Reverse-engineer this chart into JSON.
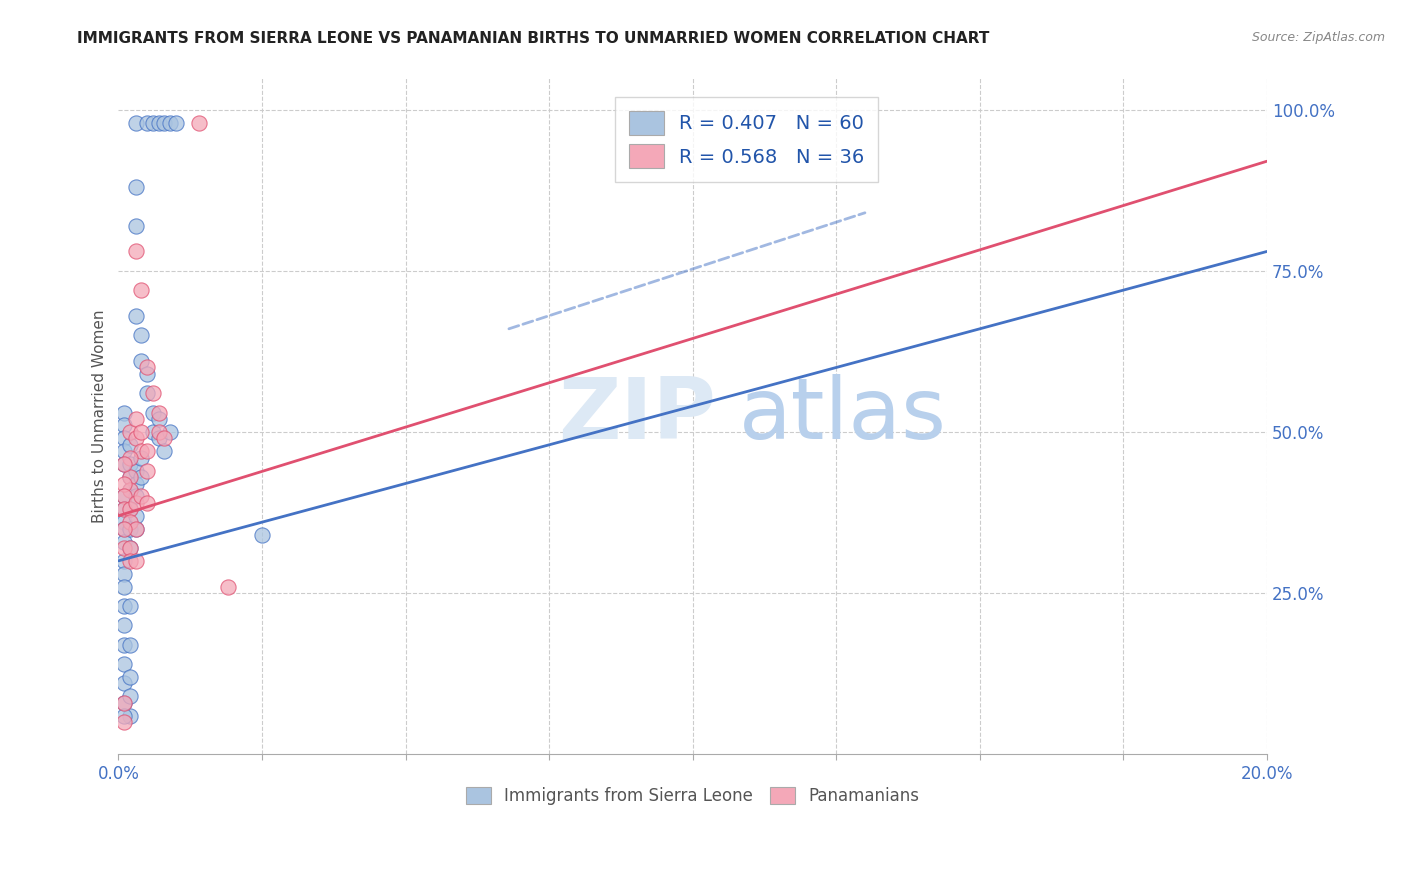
{
  "title": "IMMIGRANTS FROM SIERRA LEONE VS PANAMANIAN BIRTHS TO UNMARRIED WOMEN CORRELATION CHART",
  "source": "Source: ZipAtlas.com",
  "ylabel": "Births to Unmarried Women",
  "legend_blue_r": "R = 0.407",
  "legend_blue_n": "N = 60",
  "legend_pink_r": "R = 0.568",
  "legend_pink_n": "N = 36",
  "legend_blue_label": "Immigrants from Sierra Leone",
  "legend_pink_label": "Panamanians",
  "blue_color": "#aac4e0",
  "pink_color": "#f4a8b8",
  "line_blue_color": "#4472c4",
  "line_pink_color": "#e05070",
  "xmin": 0.0,
  "xmax": 0.2,
  "ymin": 0.0,
  "ymax": 1.05,
  "x_ticks": [
    0.0,
    0.025,
    0.05,
    0.075,
    0.1,
    0.125,
    0.15,
    0.175,
    0.2
  ],
  "y_ticks": [
    0.25,
    0.5,
    0.75,
    1.0
  ],
  "blue_scatter": [
    [
      0.003,
      0.98
    ],
    [
      0.005,
      0.98
    ],
    [
      0.006,
      0.98
    ],
    [
      0.007,
      0.98
    ],
    [
      0.008,
      0.98
    ],
    [
      0.009,
      0.98
    ],
    [
      0.01,
      0.98
    ],
    [
      0.003,
      0.88
    ],
    [
      0.003,
      0.82
    ],
    [
      0.003,
      0.68
    ],
    [
      0.004,
      0.65
    ],
    [
      0.004,
      0.61
    ],
    [
      0.005,
      0.59
    ],
    [
      0.005,
      0.56
    ],
    [
      0.006,
      0.53
    ],
    [
      0.006,
      0.5
    ],
    [
      0.007,
      0.52
    ],
    [
      0.007,
      0.49
    ],
    [
      0.008,
      0.47
    ],
    [
      0.009,
      0.5
    ],
    [
      0.001,
      0.53
    ],
    [
      0.001,
      0.51
    ],
    [
      0.001,
      0.49
    ],
    [
      0.001,
      0.47
    ],
    [
      0.001,
      0.45
    ],
    [
      0.002,
      0.48
    ],
    [
      0.002,
      0.45
    ],
    [
      0.002,
      0.43
    ],
    [
      0.002,
      0.41
    ],
    [
      0.002,
      0.38
    ],
    [
      0.001,
      0.4
    ],
    [
      0.001,
      0.38
    ],
    [
      0.001,
      0.36
    ],
    [
      0.003,
      0.44
    ],
    [
      0.003,
      0.42
    ],
    [
      0.003,
      0.4
    ],
    [
      0.004,
      0.46
    ],
    [
      0.004,
      0.43
    ],
    [
      0.001,
      0.35
    ],
    [
      0.001,
      0.33
    ],
    [
      0.001,
      0.3
    ],
    [
      0.001,
      0.28
    ],
    [
      0.001,
      0.26
    ],
    [
      0.001,
      0.23
    ],
    [
      0.002,
      0.35
    ],
    [
      0.002,
      0.32
    ],
    [
      0.001,
      0.2
    ],
    [
      0.001,
      0.17
    ],
    [
      0.001,
      0.14
    ],
    [
      0.002,
      0.17
    ],
    [
      0.001,
      0.11
    ],
    [
      0.001,
      0.08
    ],
    [
      0.002,
      0.23
    ],
    [
      0.002,
      0.12
    ],
    [
      0.002,
      0.09
    ],
    [
      0.002,
      0.06
    ],
    [
      0.001,
      0.06
    ],
    [
      0.025,
      0.34
    ],
    [
      0.003,
      0.35
    ],
    [
      0.003,
      0.37
    ]
  ],
  "pink_scatter": [
    [
      0.014,
      0.98
    ],
    [
      0.003,
      0.78
    ],
    [
      0.004,
      0.72
    ],
    [
      0.005,
      0.6
    ],
    [
      0.006,
      0.56
    ],
    [
      0.007,
      0.53
    ],
    [
      0.007,
      0.5
    ],
    [
      0.008,
      0.49
    ],
    [
      0.002,
      0.5
    ],
    [
      0.003,
      0.52
    ],
    [
      0.003,
      0.49
    ],
    [
      0.004,
      0.5
    ],
    [
      0.004,
      0.47
    ],
    [
      0.005,
      0.47
    ],
    [
      0.005,
      0.44
    ],
    [
      0.002,
      0.46
    ],
    [
      0.002,
      0.43
    ],
    [
      0.002,
      0.41
    ],
    [
      0.001,
      0.45
    ],
    [
      0.001,
      0.42
    ],
    [
      0.001,
      0.4
    ],
    [
      0.001,
      0.38
    ],
    [
      0.002,
      0.38
    ],
    [
      0.003,
      0.39
    ],
    [
      0.002,
      0.36
    ],
    [
      0.003,
      0.35
    ],
    [
      0.004,
      0.4
    ],
    [
      0.001,
      0.35
    ],
    [
      0.001,
      0.32
    ],
    [
      0.002,
      0.32
    ],
    [
      0.002,
      0.3
    ],
    [
      0.003,
      0.3
    ],
    [
      0.005,
      0.39
    ],
    [
      0.019,
      0.26
    ],
    [
      0.001,
      0.08
    ],
    [
      0.001,
      0.05
    ]
  ],
  "blue_line": [
    [
      0.0,
      0.3
    ],
    [
      0.2,
      0.78
    ]
  ],
  "blue_line_dash": [
    [
      0.08,
      0.68
    ],
    [
      0.14,
      0.84
    ]
  ],
  "pink_line": [
    [
      0.0,
      0.37
    ],
    [
      0.2,
      0.93
    ]
  ]
}
